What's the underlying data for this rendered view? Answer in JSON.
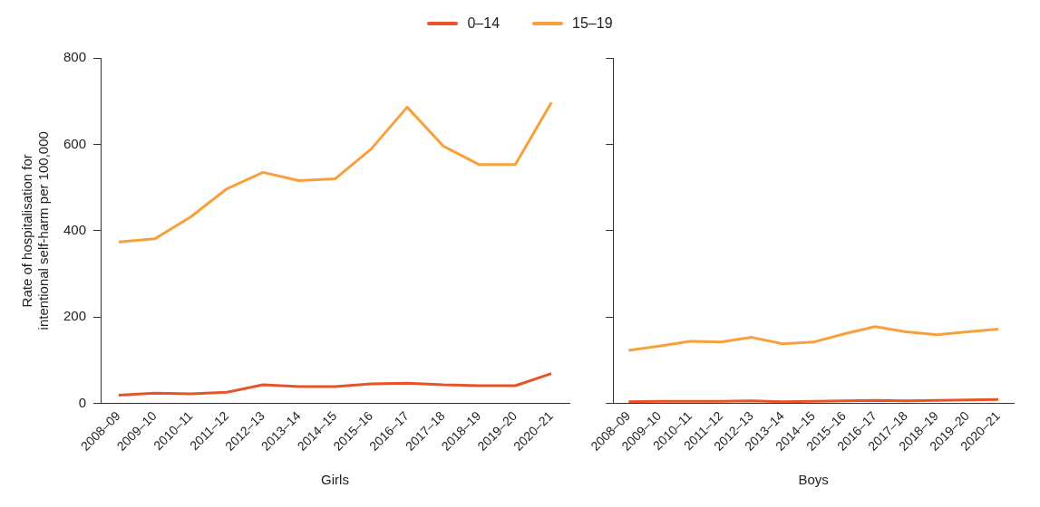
{
  "chart_data": [
    {
      "type": "line",
      "xlabel": "Girls",
      "ylabel": "Rate of hospitalisation for intentional self-harm per 100,000",
      "legend": "top",
      "grid": false,
      "marker": "none",
      "line_style": "solid",
      "categories": [
        "2008–09",
        "2009–10",
        "2010–11",
        "2011–12",
        "2012–13",
        "2013–14",
        "2014–15",
        "2015–16",
        "2016–17",
        "2017–18",
        "2018–19",
        "2019–20",
        "2020–21"
      ],
      "ylim": [
        0,
        800
      ],
      "yticks": [
        0,
        200,
        400,
        600,
        800
      ],
      "series": [
        {
          "name": "0–14",
          "color": "#e8542a",
          "values": [
            19,
            24,
            22,
            26,
            43,
            39,
            39,
            45,
            47,
            43,
            41,
            41,
            69
          ]
        },
        {
          "name": "15–19",
          "color": "#f7a03c",
          "values": [
            374,
            381,
            432,
            497,
            535,
            516,
            520,
            589,
            686,
            596,
            553,
            553,
            697
          ]
        }
      ]
    },
    {
      "type": "line",
      "xlabel": "Boys",
      "grid": false,
      "marker": "none",
      "line_style": "solid",
      "tick_labels": "x",
      "categories": [
        "2008–09",
        "2009–10",
        "2010–11",
        "2011–12",
        "2012–13",
        "2013–14",
        "2014–15",
        "2015–16",
        "2016–17",
        "2017–18",
        "2018–19",
        "2019–20",
        "2020–21"
      ],
      "ylim": [
        0,
        800
      ],
      "yticks": [
        0,
        200,
        400,
        600,
        800
      ],
      "series": [
        {
          "color": "#e8542a",
          "values": [
            4,
            5,
            5,
            5,
            6,
            4,
            5,
            6,
            7,
            6,
            7,
            8,
            9
          ]
        },
        {
          "color": "#f7a03c",
          "values": [
            123,
            133,
            144,
            142,
            153,
            138,
            142,
            161,
            178,
            166,
            159,
            166,
            172
          ]
        }
      ]
    }
  ]
}
